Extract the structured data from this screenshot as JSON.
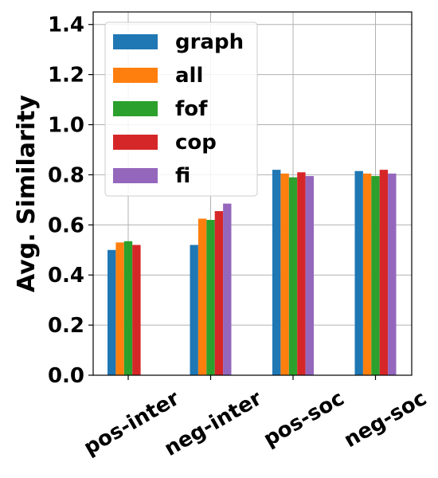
{
  "chart_data": {
    "type": "bar",
    "title": "",
    "xlabel": "",
    "ylabel": "Avg. Similarity",
    "ylim": [
      0,
      1.45
    ],
    "yticks": [
      "0.0",
      "0.2",
      "0.4",
      "0.6",
      "0.8",
      "1.0",
      "1.2",
      "1.4"
    ],
    "grid": true,
    "legend_position": "top-left",
    "categories": [
      "pos-inter",
      "neg-inter",
      "pos-soc",
      "neg-soc"
    ],
    "series": [
      {
        "name": "graph",
        "color": "#1f77b4",
        "values": [
          0.5,
          0.52,
          0.82,
          0.815
        ]
      },
      {
        "name": "all",
        "color": "#ff7f0e",
        "values": [
          0.53,
          0.625,
          0.805,
          0.805
        ]
      },
      {
        "name": "fof",
        "color": "#2ca02c",
        "values": [
          0.535,
          0.62,
          0.79,
          0.795
        ]
      },
      {
        "name": "cop",
        "color": "#d62728",
        "values": [
          0.52,
          0.655,
          0.81,
          0.82
        ]
      },
      {
        "name": "fi",
        "color": "#9467bd",
        "values": [
          0.0,
          0.685,
          0.795,
          0.805
        ]
      }
    ]
  }
}
